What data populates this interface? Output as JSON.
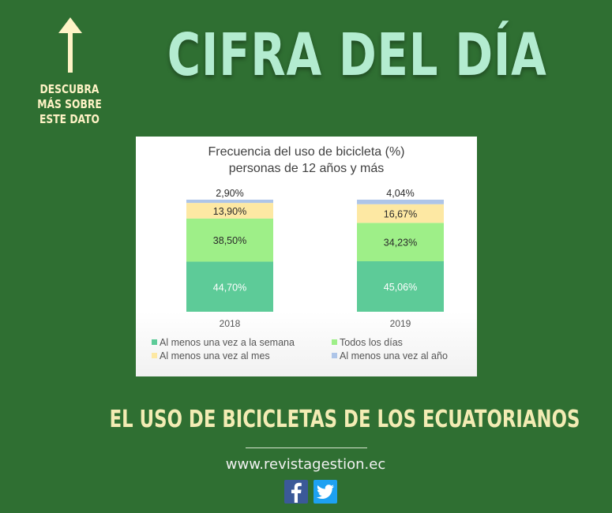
{
  "page": {
    "side_note": "DESCUBRA MÁS SOBRE ESTE DATO",
    "main_title": "CIFRA DEL DÍA",
    "headline": "EL USO DE BICICLETAS DE LOS ECUATORIANOS",
    "website": "www.revistagestion.ec",
    "icons": {
      "arrow": "arrow-up-icon",
      "facebook": "facebook-icon",
      "twitter": "twitter-icon"
    },
    "colors": {
      "background": "#2f6f32",
      "title": "#b3ecd0",
      "headline": "#f3ecb4"
    }
  },
  "chart_data": {
    "type": "bar",
    "stacked": true,
    "title": "Frecuencia del uso de bicicleta (%)",
    "subtitle": "personas de 12 años y más",
    "categories": [
      "2018",
      "2019"
    ],
    "series": [
      {
        "name": "Al menos una vez a la semana",
        "values": [
          44.7,
          45.06
        ],
        "labels": [
          "44,70%",
          "45,06%"
        ],
        "color": "#5dcb98"
      },
      {
        "name": "Todos los días",
        "values": [
          38.5,
          34.23
        ],
        "labels": [
          "38,50%",
          "34,23%"
        ],
        "color": "#9eef88"
      },
      {
        "name": "Al menos una vez al mes",
        "values": [
          13.9,
          16.67
        ],
        "labels": [
          "13,90%",
          "16,67%"
        ],
        "color": "#fde8a3"
      },
      {
        "name": "Al menos una vez al año",
        "values": [
          2.9,
          4.04
        ],
        "labels": [
          "2,90%",
          "4,04%"
        ],
        "color": "#aec5e8"
      }
    ],
    "legend_position": "bottom",
    "grid": false
  }
}
